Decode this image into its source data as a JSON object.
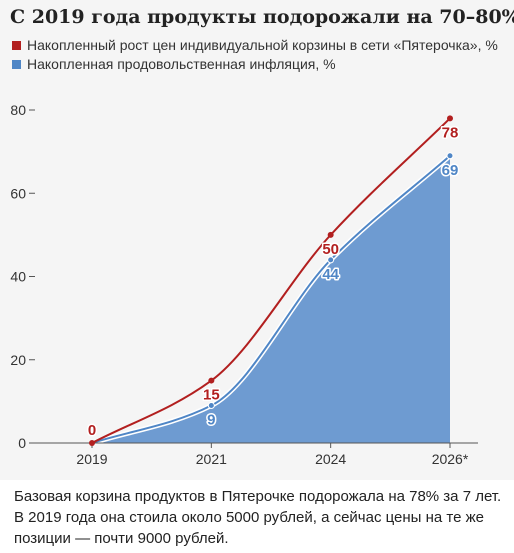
{
  "title": "С 2019 года продукты подорожали на 70–80%",
  "legend": [
    {
      "label": "Накопленный рост цен индивидуальной корзины в сети «Пятерочка», %",
      "color": "#b21f1f"
    },
    {
      "label": "Накопленная продовольственная инфляция, %",
      "color": "#4f86c6"
    }
  ],
  "caption": "Базовая корзина продуктов в Пятерочке подорожала на 78% за 7 лет. В 2019 года она стоила около 5000 рублей, а сейчас цены на те же позиции — почти 9000 рублей.",
  "colors": {
    "area_fill": "#6e9bd1",
    "area_line": "#4f86c6",
    "red_line": "#b21f1f",
    "axis": "#555555"
  },
  "chart_data": {
    "type": "area",
    "categories": [
      "2019",
      "2021",
      "2024",
      "2026*"
    ],
    "ylim": [
      0,
      80
    ],
    "yticks": [
      0,
      20,
      40,
      60,
      80
    ],
    "grid": false,
    "legend_position": "top-left",
    "series": [
      {
        "name": "Накопленный рост цен индивидуальной корзины в сети «Пятерочка», %",
        "type": "line",
        "color": "#b21f1f",
        "values": [
          0,
          15,
          50,
          78
        ],
        "labels": [
          "0",
          "15",
          "50",
          "78"
        ]
      },
      {
        "name": "Накопленная продовольственная инфляция, %",
        "type": "area",
        "color": "#4f86c6",
        "values": [
          0,
          9,
          44,
          69
        ],
        "labels": [
          "",
          "9",
          "44",
          "69"
        ]
      }
    ]
  }
}
